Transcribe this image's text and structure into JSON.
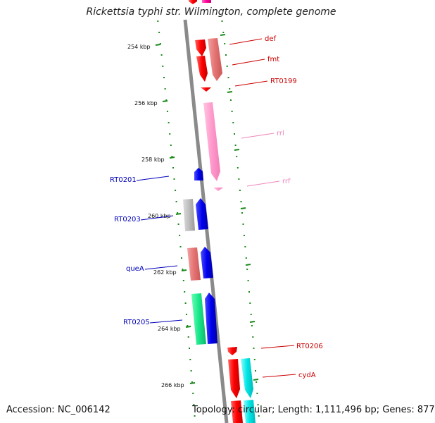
{
  "title": "Rickettsia typhi str. Wilmington, complete genome",
  "footer": {
    "accession": "Accession: NC_006142",
    "topology": "Topology: circular; Length: 1,111,496 bp; Genes: 877"
  },
  "colors": {
    "backbone": "#8a8a8a",
    "tick": "#1a8a1a",
    "forward_label": "#cc0000",
    "reverse_label": "#0000bb",
    "rna_label": "#ee88bb"
  },
  "scale_labels": [
    "254 kbp",
    "256 kbp",
    "258 kbp",
    "260 kbp",
    "262 kbp",
    "264 kbp",
    "266 kbp"
  ],
  "genes": [
    {
      "name": "def",
      "strand": "forward",
      "label_color": "#cc0000",
      "fill": "#ff0000"
    },
    {
      "name": "fmt",
      "strand": "forward",
      "label_color": "#cc0000",
      "fill": "#e57373"
    },
    {
      "name": "RT0199",
      "strand": "forward",
      "label_color": "#cc0000",
      "fill": "#ff0000"
    },
    {
      "name": "rrl",
      "strand": "forward",
      "label_color": "#ee88bb",
      "fill": "#ff99cc"
    },
    {
      "name": "rrf",
      "strand": "forward",
      "label_color": "#ee88bb",
      "fill": "#ff99cc"
    },
    {
      "name": "RT0201",
      "strand": "reverse",
      "label_color": "#0000bb",
      "fill": "#0000ee"
    },
    {
      "name": "RT0203",
      "strand": "reverse",
      "label_color": "#0000bb",
      "fill": "#0000ee"
    },
    {
      "name": "queA",
      "strand": "reverse",
      "label_color": "#0000bb",
      "fill": "#0000ee"
    },
    {
      "name": "RT0205",
      "strand": "reverse",
      "label_color": "#0000bb",
      "fill": "#0000ee"
    },
    {
      "name": "RT0206",
      "strand": "forward",
      "label_color": "#cc0000",
      "fill": "#ff0000"
    },
    {
      "name": "cydA",
      "strand": "forward",
      "label_color": "#cc0000",
      "fill": "#00e5e5"
    }
  ]
}
